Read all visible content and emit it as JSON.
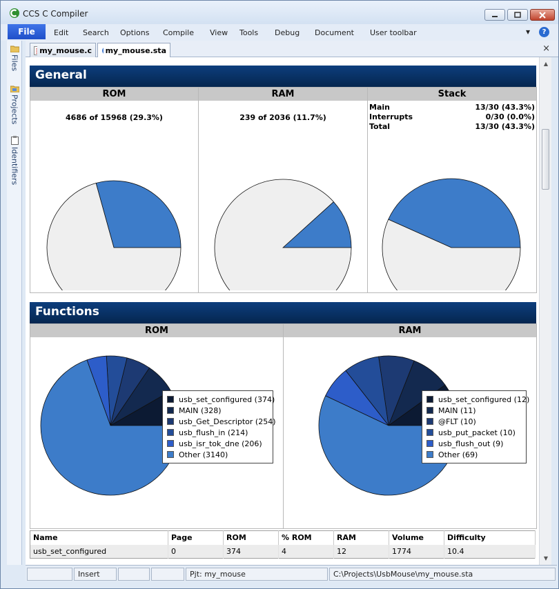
{
  "app": {
    "title": "CCS C Compiler",
    "icon": "ccs-logo-icon"
  },
  "window_buttons": [
    {
      "name": "minimize-button",
      "glyph": "▭"
    },
    {
      "name": "maximize-button",
      "glyph": "▢"
    },
    {
      "name": "close-button",
      "glyph": "✕"
    }
  ],
  "menu": {
    "file_label": "File",
    "items": [
      "Edit",
      "Search",
      "Options",
      "Compile",
      "View",
      "Tools",
      "Debug",
      "Document",
      "User toolbar"
    ],
    "help_glyph": "?",
    "dropdown_glyph": "▾"
  },
  "sidebar": {
    "tabs": [
      {
        "label": "Files",
        "icon": "folder-icon"
      },
      {
        "label": "Projects",
        "icon": "project-icon"
      },
      {
        "label": "Identifiers",
        "icon": "clipboard-icon"
      }
    ]
  },
  "doc_tabs": [
    {
      "label": "my_mouse.c",
      "icon": "c-source-icon",
      "active": false
    },
    {
      "label": "my_mouse.sta",
      "icon": "stats-icon",
      "active": true
    }
  ],
  "doc_close_glyph": "×",
  "general": {
    "title": "General",
    "rom": {
      "header": "ROM",
      "usage": "4686 of 15968 (29.3%)",
      "fraction": 0.293
    },
    "ram": {
      "header": "RAM",
      "usage": "239 of 2036 (11.7%)",
      "fraction": 0.117
    },
    "stack": {
      "header": "Stack",
      "fraction": 0.433,
      "rows": [
        {
          "label": "Main",
          "value": "13/30 (43.3%)"
        },
        {
          "label": "Interrupts",
          "value": "0/30 (0.0%)"
        },
        {
          "label": "Total",
          "value": "13/30 (43.3%)"
        }
      ]
    }
  },
  "functions": {
    "title": "Functions",
    "rom": {
      "header": "ROM",
      "legend": [
        "usb_set_configured (374)",
        "MAIN (328)",
        "usb_Get_Descriptor (254)",
        "usb_flush_in (214)",
        "usb_isr_tok_dne (206)",
        "Other (3140)"
      ]
    },
    "ram": {
      "header": "RAM",
      "legend": [
        "usb_set_configured (12)",
        "MAIN (11)",
        "@FLT (10)",
        "usb_put_packet (10)",
        "usb_flush_out (9)",
        "Other (69)"
      ]
    }
  },
  "chart_data": [
    {
      "type": "pie",
      "title": "ROM",
      "categories": [
        "Used",
        "Free"
      ],
      "values": [
        29.3,
        70.7
      ]
    },
    {
      "type": "pie",
      "title": "RAM",
      "categories": [
        "Used",
        "Free"
      ],
      "values": [
        11.7,
        88.3
      ]
    },
    {
      "type": "pie",
      "title": "Stack",
      "categories": [
        "Used",
        "Free"
      ],
      "values": [
        43.3,
        56.7
      ]
    },
    {
      "type": "pie",
      "title": "ROM",
      "categories": [
        "usb_set_configured",
        "MAIN",
        "usb_Get_Descriptor",
        "usb_flush_in",
        "usb_isr_tok_dne",
        "Other"
      ],
      "values": [
        374,
        328,
        254,
        214,
        206,
        3140
      ]
    },
    {
      "type": "pie",
      "title": "RAM",
      "categories": [
        "usb_set_configured",
        "MAIN",
        "@FLT",
        "usb_put_packet",
        "usb_flush_out",
        "Other"
      ],
      "values": [
        12,
        11,
        10,
        10,
        9,
        69
      ]
    }
  ],
  "colors": {
    "header_bg": "#05264f",
    "pie_used": "#3d7cc9",
    "pie_free": "#efefef",
    "slices": [
      "#0c1a33",
      "#13294f",
      "#1d3a73",
      "#234d99",
      "#2d5dc9",
      "#3d7cc9"
    ]
  },
  "table": {
    "columns": [
      "Name",
      "Page",
      "ROM",
      "% ROM",
      "RAM",
      "Volume",
      "Difficulty"
    ],
    "rows": [
      [
        "usb_set_configured",
        "0",
        "374",
        "4",
        "12",
        "1774",
        "10.4"
      ]
    ]
  },
  "status": {
    "mode": "Insert",
    "project": "Pjt: my_mouse",
    "path": "C:\\Projects\\UsbMouse\\my_mouse.sta"
  }
}
